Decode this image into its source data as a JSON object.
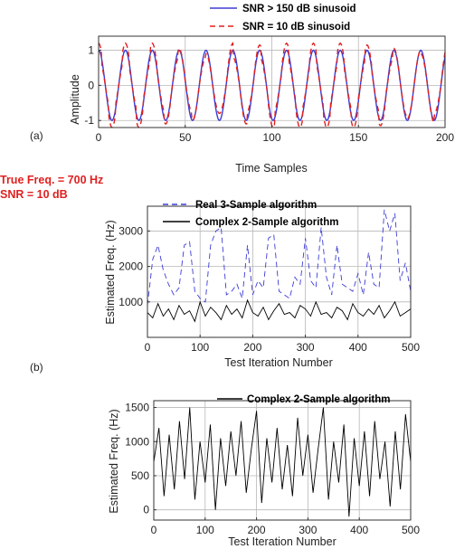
{
  "annotation": {
    "true_freq": "True Freq. = 700 Hz",
    "snr": "SNR = 10 dB"
  },
  "colors": {
    "blue": "#3b3bd6",
    "red": "#e0201e",
    "black": "#000000",
    "grid": "#b8b8b8",
    "annotation": "#e02020"
  },
  "chart_data": [
    {
      "type": "line",
      "panel_label": "(a)",
      "xlabel": "Time Samples",
      "ylabel": "Amplitude",
      "xlim": [
        0,
        200
      ],
      "ylim": [
        -1.2,
        1.4
      ],
      "xticks": [
        0,
        50,
        100,
        150,
        200
      ],
      "yticks": [
        -1,
        0,
        1
      ],
      "grid": true,
      "legend_position": "top-center",
      "period_samples": 15.5,
      "series": [
        {
          "name": "SNR > 150 dB sinusoid",
          "color": "#3b3bd6",
          "style": "solid",
          "amplitude": 1.0,
          "x": [
            0,
            4,
            8,
            12,
            16,
            20,
            24,
            28,
            32,
            36,
            40,
            44,
            48,
            52,
            56,
            60,
            64,
            68,
            72,
            76,
            80,
            84,
            88,
            92,
            96,
            100,
            104,
            108,
            112,
            116,
            120,
            124,
            128,
            132,
            136,
            140,
            144,
            148,
            152,
            156,
            160,
            164,
            168,
            172,
            176,
            180,
            184,
            188,
            192,
            196,
            200
          ],
          "y": [
            1.0,
            -0.05,
            -1.0,
            -0.08,
            0.97,
            0.15,
            -0.94,
            -0.25,
            0.89,
            0.34,
            -0.84,
            -0.42,
            0.77,
            0.51,
            -0.69,
            -0.59,
            0.61,
            0.66,
            -0.53,
            -0.73,
            0.44,
            0.8,
            -0.35,
            -0.86,
            0.26,
            0.91,
            -0.17,
            -0.95,
            0.07,
            0.98,
            0.03,
            -1.0,
            -0.13,
            1.0,
            0.22,
            -0.97,
            -0.32,
            0.94,
            0.41,
            -0.89,
            -0.49,
            0.83,
            0.58,
            -0.76,
            -0.65,
            0.68,
            0.72,
            -0.6,
            -0.79,
            0.52,
            0.85
          ]
        },
        {
          "name": "SNR = 10 dB sinusoid",
          "color": "#e0201e",
          "style": "dashed",
          "x": [
            0,
            4,
            8,
            12,
            16,
            20,
            24,
            28,
            32,
            36,
            40,
            44,
            48,
            52,
            56,
            60,
            64,
            68,
            72,
            76,
            80,
            84,
            88,
            92,
            96,
            100,
            104,
            108,
            112,
            116,
            120,
            124,
            128,
            132,
            136,
            140,
            144,
            148,
            152,
            156,
            160,
            164,
            168,
            172,
            176,
            180,
            184,
            188,
            192,
            196,
            200
          ],
          "y": [
            1.1,
            0.05,
            -1.05,
            -0.2,
            1.05,
            0.05,
            -1.0,
            -0.15,
            1.0,
            0.45,
            -0.9,
            -0.35,
            0.85,
            0.6,
            -0.8,
            -0.5,
            0.7,
            0.55,
            -0.6,
            -1.15,
            0.5,
            0.9,
            -0.3,
            -0.95,
            0.35,
            1.0,
            -0.25,
            -1.05,
            0.15,
            1.1,
            -0.05,
            -1.1,
            -0.05,
            1.15,
            0.3,
            -1.05,
            -0.25,
            1.05,
            0.5,
            -0.95,
            -0.6,
            0.95,
            0.5,
            -0.85,
            -0.7,
            0.75,
            0.8,
            -0.7,
            -0.85,
            0.6,
            0.95
          ]
        }
      ]
    },
    {
      "type": "line",
      "panel_label": "(b)",
      "xlabel": "Test Iteration Number",
      "ylabel": "Estimated Freq. (Hz)",
      "xlim": [
        0,
        500
      ],
      "ylim": [
        0,
        3700
      ],
      "xticks": [
        0,
        100,
        200,
        300,
        400,
        500
      ],
      "yticks": [
        1000,
        2000,
        3000
      ],
      "grid": true,
      "legend_position": "top-left",
      "series": [
        {
          "name": "Real 3-Sample algorithm",
          "color": "#3b3bd6",
          "style": "dashed",
          "x": [
            0,
            10,
            20,
            30,
            40,
            50,
            60,
            70,
            80,
            90,
            100,
            110,
            120,
            130,
            140,
            150,
            160,
            170,
            180,
            190,
            200,
            210,
            220,
            230,
            240,
            250,
            260,
            270,
            280,
            290,
            300,
            310,
            320,
            330,
            340,
            350,
            360,
            370,
            380,
            390,
            400,
            410,
            420,
            430,
            440,
            450,
            460,
            470,
            480,
            490,
            500
          ],
          "y": [
            900,
            2200,
            2600,
            1900,
            1500,
            1200,
            1400,
            2600,
            2700,
            1300,
            1100,
            1000,
            2600,
            3000,
            3100,
            1200,
            1300,
            1500,
            1100,
            2600,
            1200,
            1600,
            1400,
            2800,
            2900,
            1300,
            1200,
            1100,
            1700,
            1500,
            2800,
            1600,
            1400,
            3100,
            1700,
            1200,
            2600,
            1500,
            1400,
            1300,
            1800,
            1200,
            2400,
            1500,
            1400,
            3600,
            3000,
            3500,
            1600,
            2100,
            1300
          ]
        },
        {
          "name": "Complex 2-Sample algorithm",
          "color": "#000000",
          "style": "solid",
          "x": [
            0,
            10,
            20,
            30,
            40,
            50,
            60,
            70,
            80,
            90,
            100,
            110,
            120,
            130,
            140,
            150,
            160,
            170,
            180,
            190,
            200,
            210,
            220,
            230,
            240,
            250,
            260,
            270,
            280,
            290,
            300,
            310,
            320,
            330,
            340,
            350,
            360,
            370,
            380,
            390,
            400,
            410,
            420,
            430,
            440,
            450,
            460,
            470,
            480,
            490,
            500
          ],
          "y": [
            700,
            550,
            950,
            600,
            800,
            500,
            900,
            650,
            750,
            450,
            1000,
            600,
            850,
            700,
            500,
            900,
            650,
            800,
            550,
            1050,
            700,
            600,
            850,
            500,
            750,
            950,
            650,
            700,
            550,
            900,
            800,
            600,
            1000,
            650,
            700,
            550,
            850,
            750,
            500,
            950,
            700,
            600,
            800,
            650,
            900,
            550,
            750,
            1000,
            600,
            700,
            800
          ]
        }
      ]
    },
    {
      "type": "line",
      "panel_label": "",
      "xlabel": "Test Iteration Number",
      "ylabel": "Estimated Freq. (Hz)",
      "xlim": [
        0,
        500
      ],
      "ylim": [
        -150,
        1600
      ],
      "xticks": [
        0,
        100,
        200,
        300,
        400,
        500
      ],
      "yticks": [
        0,
        500,
        1000,
        1500
      ],
      "grid": true,
      "legend_position": "top-right",
      "series": [
        {
          "name": "Complex 2-Sample algorithm",
          "color": "#000000",
          "style": "solid",
          "x": [
            0,
            10,
            20,
            30,
            40,
            50,
            60,
            70,
            80,
            90,
            100,
            110,
            120,
            130,
            140,
            150,
            160,
            170,
            180,
            190,
            200,
            210,
            220,
            230,
            240,
            250,
            260,
            270,
            280,
            290,
            300,
            310,
            320,
            330,
            340,
            350,
            360,
            370,
            380,
            390,
            400,
            410,
            420,
            430,
            440,
            450,
            460,
            470,
            480,
            490,
            500
          ],
          "y": [
            700,
            1200,
            200,
            1100,
            300,
            1300,
            450,
            1500,
            150,
            1000,
            400,
            1250,
            0,
            1050,
            350,
            1150,
            500,
            1300,
            250,
            900,
            1450,
            100,
            1050,
            400,
            1200,
            300,
            950,
            200,
            1350,
            500,
            1100,
            250,
            900,
            1500,
            150,
            1000,
            400,
            1250,
            -100,
            1050,
            350,
            1150,
            200,
            1300,
            450,
            1000,
            50,
            1150,
            300,
            1400,
            700
          ]
        }
      ]
    }
  ]
}
